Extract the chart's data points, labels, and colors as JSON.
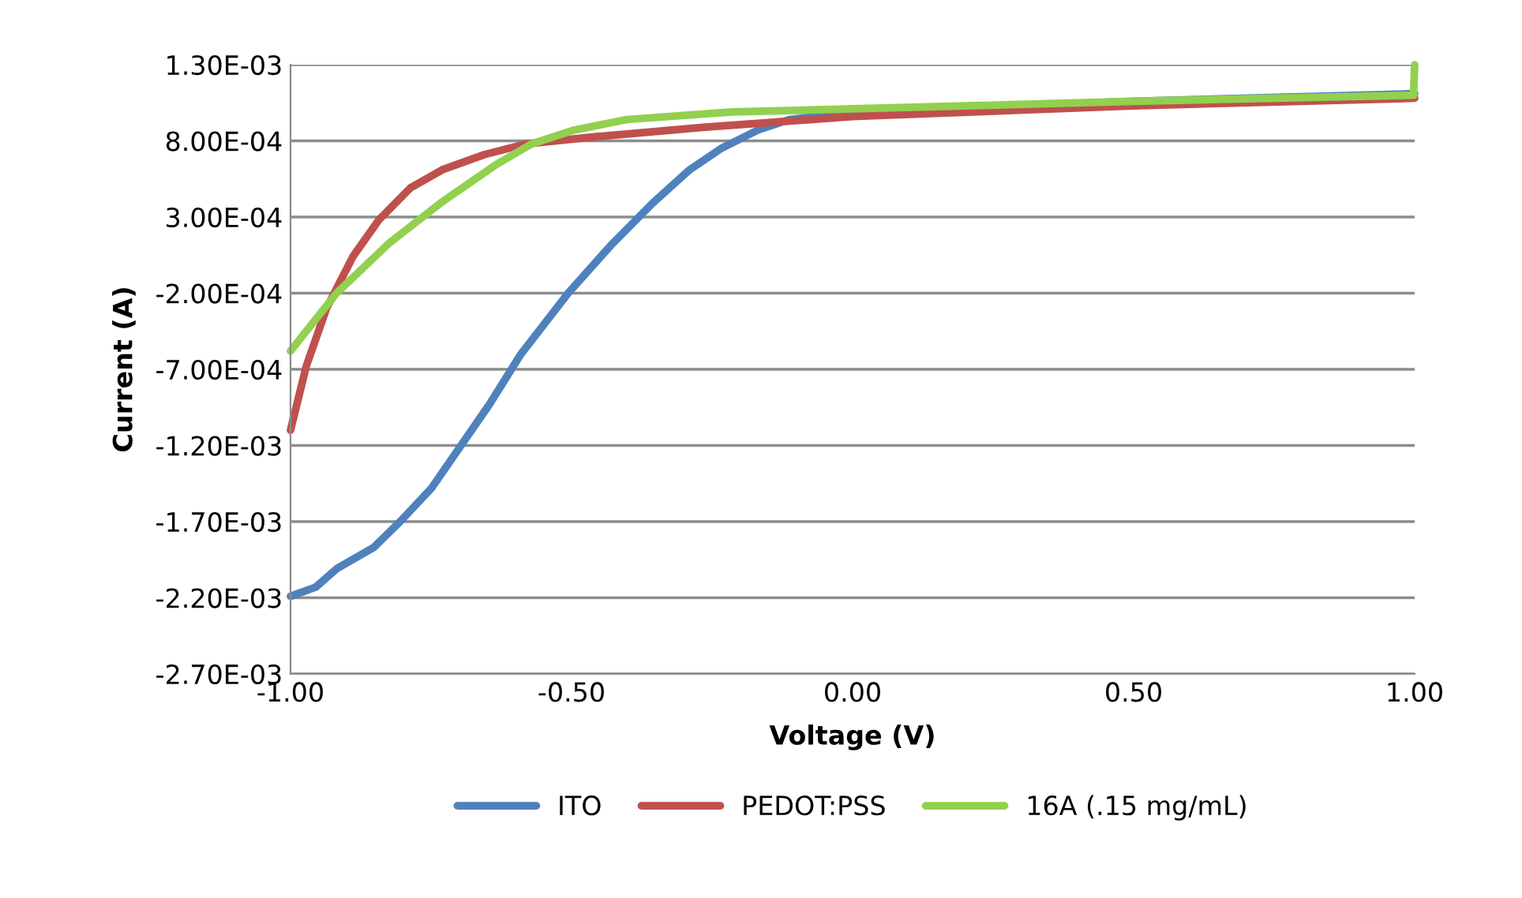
{
  "chart_data": {
    "type": "line",
    "xlabel": "Voltage (V)",
    "ylabel": "Current (A)",
    "xlim": [
      -1.0,
      1.0
    ],
    "xticks": [
      {
        "value": -1.0,
        "label": "-1.00"
      },
      {
        "value": -0.5,
        "label": "-0.50"
      },
      {
        "value": 0.0,
        "label": "0.00"
      },
      {
        "value": 0.5,
        "label": "0.50"
      },
      {
        "value": 1.0,
        "label": "1.00"
      }
    ],
    "ylim": [
      -0.0027,
      0.0013
    ],
    "yticks": [
      {
        "value": 0.0013,
        "label": "1.30E-03"
      },
      {
        "value": 0.0008,
        "label": "8.00E-04"
      },
      {
        "value": 0.0003,
        "label": "3.00E-04"
      },
      {
        "value": -0.0002,
        "label": "-2.00E-04"
      },
      {
        "value": -0.0007,
        "label": "-7.00E-04"
      },
      {
        "value": -0.0012,
        "label": "-1.20E-03"
      },
      {
        "value": -0.0017,
        "label": "-1.70E-03"
      },
      {
        "value": -0.0022,
        "label": "-2.20E-03"
      },
      {
        "value": -0.0027,
        "label": "-2.70E-03"
      }
    ],
    "grid": "y",
    "legend": "bottom",
    "marker": "none",
    "line_style": "solid",
    "series": [
      {
        "name": "ITO",
        "color": "#4f81bd",
        "x": [
          -1.0,
          -0.955,
          -0.918,
          -0.852,
          -0.805,
          -0.749,
          -0.693,
          -0.646,
          -0.59,
          -0.506,
          -0.431,
          -0.356,
          -0.29,
          -0.234,
          -0.169,
          -0.112,
          0.0,
          0.5,
          1.0
        ],
        "values": [
          -0.00219,
          -0.00213,
          -0.00201,
          -0.00187,
          -0.0017,
          -0.00148,
          -0.00118,
          -0.00093,
          -0.0006,
          -0.0002,
          0.00011,
          0.00039,
          0.00061,
          0.00075,
          0.00087,
          0.00094,
          0.00099,
          0.00106,
          0.00111
        ]
      },
      {
        "name": "PEDOT:PSS",
        "color": "#c0504d",
        "x": [
          -1.0,
          -0.972,
          -0.936,
          -0.889,
          -0.843,
          -0.787,
          -0.73,
          -0.655,
          -0.581,
          -0.449,
          -0.262,
          0.0,
          0.5,
          1.0
        ],
        "values": [
          -0.0011,
          -0.00068,
          -0.0003,
          4e-05,
          0.00028,
          0.00049,
          0.00061,
          0.00071,
          0.00078,
          0.00083,
          0.00089,
          0.00096,
          0.00103,
          0.00108
        ]
      },
      {
        "name": "16A (.15 mg/mL)",
        "color": "#92d050",
        "x": [
          -1.0,
          -0.918,
          -0.824,
          -0.73,
          -0.636,
          -0.571,
          -0.496,
          -0.402,
          -0.215,
          0.0,
          0.5,
          0.998,
          1.0
        ],
        "values": [
          -0.00058,
          -0.0002,
          0.00013,
          0.0004,
          0.00064,
          0.00078,
          0.00087,
          0.00094,
          0.00099,
          0.00101,
          0.00106,
          0.0011,
          0.0013
        ]
      }
    ]
  }
}
